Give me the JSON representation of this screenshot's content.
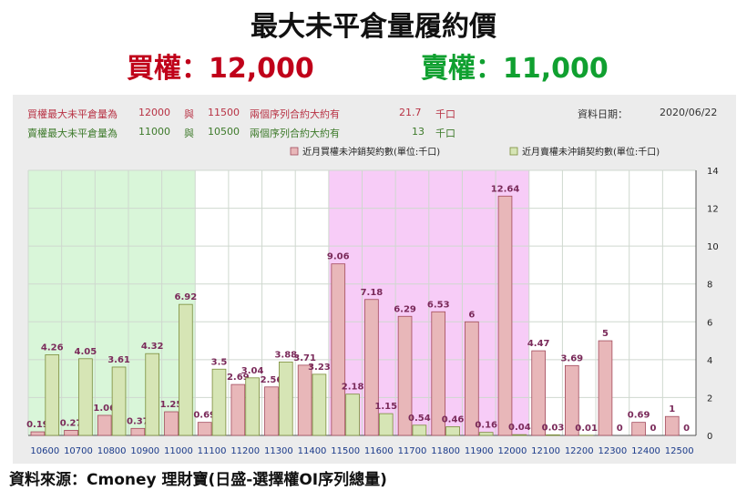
{
  "header": {
    "title": "最大未平倉量履約價",
    "put_label": "買權：12,000",
    "call_label": "賣權：11,000",
    "put_color": "#c0001a",
    "call_color": "#10a030"
  },
  "info": {
    "row1_label": "買權最大未平倉量為",
    "row1_v1": "12000",
    "row1_mid": "與",
    "row1_v2": "11500",
    "row1_text": "兩個序列合約大約有",
    "row1_amount": "21.7",
    "row1_unit": "千口",
    "row2_label": "賣權最大未平倉量為",
    "row2_v1": "11000",
    "row2_mid": "與",
    "row2_v2": "10500",
    "row2_text": "兩個序列合約大約有",
    "row2_amount": "13",
    "row2_unit": "千口",
    "date_label": "資料日期：",
    "date_value": "2020/06/22"
  },
  "footer": {
    "text": "資料來源：Cmoney 理財寶(日盛-選擇權OI序列總量)"
  },
  "chart_data": {
    "type": "bar",
    "categories": [
      "10600",
      "10700",
      "10800",
      "10900",
      "11000",
      "11100",
      "11200",
      "11300",
      "11400",
      "11500",
      "11600",
      "11700",
      "11800",
      "11900",
      "12000",
      "12100",
      "12200",
      "12300",
      "12400",
      "12500"
    ],
    "series": [
      {
        "name": "近月買權未沖銷契約數(單位:千口)",
        "color": "#e8b7b9",
        "stroke": "#a24a5c",
        "values": [
          0.19,
          0.27,
          1.06,
          0.37,
          1.25,
          0.69,
          2.69,
          2.56,
          3.71,
          9.06,
          7.18,
          6.29,
          6.53,
          6,
          12.64,
          4.47,
          3.69,
          5,
          0.69,
          1
        ]
      },
      {
        "name": "近月賣權未沖銷契約數(單位:千口)",
        "color": "#d6e5b5",
        "stroke": "#7a8c3a",
        "values": [
          4.26,
          4.05,
          3.61,
          4.32,
          6.92,
          3.5,
          3.04,
          3.88,
          3.23,
          2.18,
          1.15,
          0.54,
          0.46,
          0.16,
          0.04,
          0.03,
          0.01,
          0,
          0,
          0
        ]
      }
    ],
    "ylim": [
      0,
      14
    ],
    "yticks": [
      0,
      2,
      4,
      6,
      8,
      10,
      12,
      14
    ],
    "y_axis_side": "right",
    "legend_position": "top-right",
    "shaded_ranges": [
      {
        "from": "10600",
        "to": "11000",
        "color": "#d9f6d9"
      },
      {
        "from": "11500",
        "to": "12000",
        "color": "#f7ccf7"
      }
    ],
    "label_color": "#7a2a5a"
  }
}
